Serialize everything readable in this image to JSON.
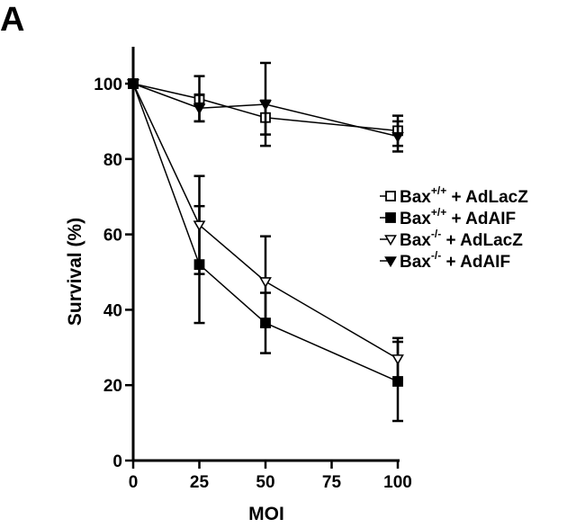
{
  "panel_label": "A",
  "chart_data": {
    "type": "line",
    "title": "",
    "xlabel": "MOI",
    "ylabel": "Survival (%)",
    "x": [
      0,
      25,
      50,
      100
    ],
    "xlim": [
      0,
      100
    ],
    "ylim": [
      0,
      110
    ],
    "xticks": [
      "0",
      "25",
      "50",
      "75",
      "100"
    ],
    "yticks": [
      "0",
      "20",
      "40",
      "60",
      "80",
      "100"
    ],
    "grid": false,
    "legend_position": "right",
    "series": [
      {
        "name": "Bax+/+ + AdLacZ",
        "legend_base": "Bax",
        "legend_sup": "+/+",
        "legend_rest": " + AdLacZ",
        "marker": "square-open",
        "values": [
          100,
          96,
          91,
          87.5
        ],
        "errors": [
          0,
          6,
          4.5,
          4
        ]
      },
      {
        "name": "Bax+/+ + AdAIF",
        "legend_base": "Bax",
        "legend_sup": "+/+",
        "legend_rest": " + AdAIF",
        "marker": "square-filled",
        "values": [
          100,
          52,
          36.5,
          21
        ],
        "errors": [
          0,
          15.5,
          8,
          10.5
        ]
      },
      {
        "name": "Bax-/- + AdLacZ",
        "legend_base": "Bax",
        "legend_sup": "-/-",
        "legend_rest": " + AdLacZ",
        "marker": "triangle-down-open",
        "values": [
          100,
          62.5,
          47.5,
          27
        ],
        "errors": [
          0,
          13,
          12,
          5.5
        ]
      },
      {
        "name": "Bax-/- + AdAIF",
        "legend_base": "Bax",
        "legend_sup": "-/-",
        "legend_rest": " + AdAIF",
        "marker": "triangle-down-filled",
        "values": [
          100,
          93.5,
          94.5,
          86
        ],
        "errors": [
          0,
          3.5,
          11,
          4
        ]
      }
    ]
  }
}
